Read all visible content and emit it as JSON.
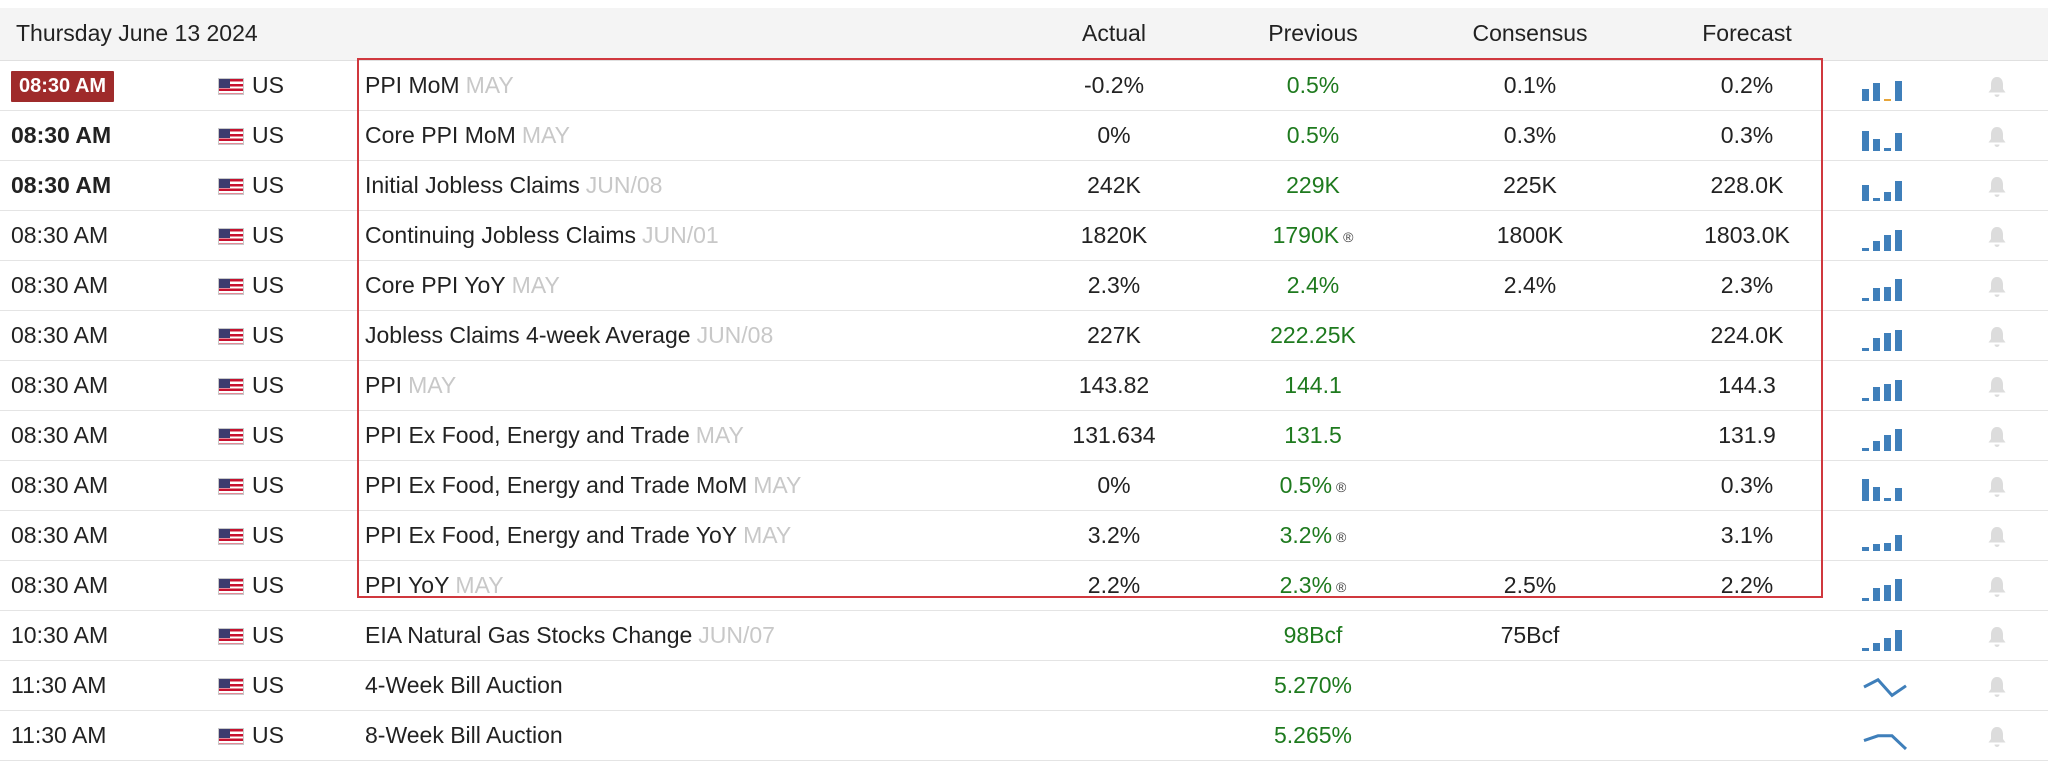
{
  "header": {
    "date": "Thursday June 13 2024",
    "columns": {
      "actual": "Actual",
      "previous": "Previous",
      "consensus": "Consensus",
      "forecast": "Forecast"
    }
  },
  "colors": {
    "active_time_bg": "#9f2b2b",
    "previous_text": "#1e7a1e",
    "highlight_border": "#d0383e",
    "spark_bar": "#3f7fba"
  },
  "rows": [
    {
      "time": "08:30 AM",
      "country": "US",
      "event": "PPI MoM",
      "ref": "MAY",
      "actual": "-0.2%",
      "previous": "0.5%",
      "consensus": "0.1%",
      "forecast": "0.2%",
      "previous_revised": false,
      "spark": [
        0.45,
        0.7,
        0.0,
        0.75
      ],
      "spark_has_orange": true
    },
    {
      "time": "08:30 AM",
      "country": "US",
      "event": "Core PPI MoM",
      "ref": "MAY",
      "actual": "0%",
      "previous": "0.5%",
      "consensus": "0.3%",
      "forecast": "0.3%",
      "previous_revised": false,
      "spark": [
        0.75,
        0.45,
        0.1,
        0.7
      ]
    },
    {
      "time": "08:30 AM",
      "country": "US",
      "event": "Initial Jobless Claims",
      "ref": "JUN/08",
      "actual": "242K",
      "previous": "229K",
      "consensus": "225K",
      "forecast": "228.0K",
      "previous_revised": false,
      "spark": [
        0.6,
        0.1,
        0.35,
        0.75
      ]
    },
    {
      "time": "08:30 AM",
      "country": "US",
      "event": "Continuing Jobless Claims",
      "ref": "JUN/01",
      "actual": "1820K",
      "previous": "1790K",
      "consensus": "1800K",
      "forecast": "1803.0K",
      "previous_revised": true,
      "spark": [
        0.1,
        0.4,
        0.6,
        0.8
      ]
    },
    {
      "time": "08:30 AM",
      "country": "US",
      "event": "Core PPI YoY",
      "ref": "MAY",
      "actual": "2.3%",
      "previous": "2.4%",
      "consensus": "2.4%",
      "forecast": "2.3%",
      "previous_revised": false,
      "spark": [
        0.1,
        0.5,
        0.55,
        0.85
      ]
    },
    {
      "time": "08:30 AM",
      "country": "US",
      "event": "Jobless Claims 4-week Average",
      "ref": "JUN/08",
      "actual": "227K",
      "previous": "222.25K",
      "consensus": "",
      "forecast": "224.0K",
      "previous_revised": false,
      "spark": [
        0.1,
        0.5,
        0.7,
        0.8
      ]
    },
    {
      "time": "08:30 AM",
      "country": "US",
      "event": "PPI",
      "ref": "MAY",
      "actual": "143.82",
      "previous": "144.1",
      "consensus": "",
      "forecast": "144.3",
      "previous_revised": false,
      "spark": [
        0.1,
        0.55,
        0.65,
        0.8
      ]
    },
    {
      "time": "08:30 AM",
      "country": "US",
      "event": "PPI Ex Food, Energy and Trade",
      "ref": "MAY",
      "actual": "131.634",
      "previous": "131.5",
      "consensus": "",
      "forecast": "131.9",
      "previous_revised": false,
      "spark": [
        0.1,
        0.4,
        0.6,
        0.85
      ]
    },
    {
      "time": "08:30 AM",
      "country": "US",
      "event": "PPI Ex Food, Energy and Trade MoM",
      "ref": "MAY",
      "actual": "0%",
      "previous": "0.5%",
      "consensus": "",
      "forecast": "0.3%",
      "previous_revised": true,
      "spark": [
        0.85,
        0.55,
        0.1,
        0.5
      ]
    },
    {
      "time": "08:30 AM",
      "country": "US",
      "event": "PPI Ex Food, Energy and Trade YoY",
      "ref": "MAY",
      "actual": "3.2%",
      "previous": "3.2%",
      "consensus": "",
      "forecast": "3.1%",
      "previous_revised": true,
      "spark": [
        0.15,
        0.25,
        0.3,
        0.6
      ]
    },
    {
      "time": "08:30 AM",
      "country": "US",
      "event": "PPI YoY",
      "ref": "MAY",
      "actual": "2.2%",
      "previous": "2.3%",
      "consensus": "2.5%",
      "forecast": "2.2%",
      "previous_revised": true,
      "spark": [
        0.1,
        0.5,
        0.6,
        0.85
      ]
    },
    {
      "time": "10:30 AM",
      "country": "US",
      "event": "EIA Natural Gas Stocks Change",
      "ref": "JUN/07",
      "actual": "",
      "previous": "98Bcf",
      "consensus": "75Bcf",
      "forecast": "",
      "previous_revised": false,
      "spark": [
        0.1,
        0.3,
        0.5,
        0.8
      ]
    },
    {
      "time": "11:30 AM",
      "country": "US",
      "event": "4-Week Bill Auction",
      "ref": "",
      "actual": "",
      "previous": "5.270%",
      "consensus": "",
      "forecast": "",
      "previous_revised": false,
      "spark_line": [
        0.5,
        0.8,
        0.15,
        0.55
      ]
    },
    {
      "time": "11:30 AM",
      "country": "US",
      "event": "8-Week Bill Auction",
      "ref": "",
      "actual": "",
      "previous": "5.265%",
      "consensus": "",
      "forecast": "",
      "previous_revised": false,
      "spark_line": [
        0.35,
        0.55,
        0.55,
        0.0
      ]
    }
  ],
  "row_styles": {
    "active_index": 0,
    "bold_indices": [
      1,
      2
    ]
  },
  "icons": {
    "bell": "bell-icon",
    "flag": "us-flag-icon",
    "revised": "revised-icon"
  },
  "revised_mark": "®"
}
